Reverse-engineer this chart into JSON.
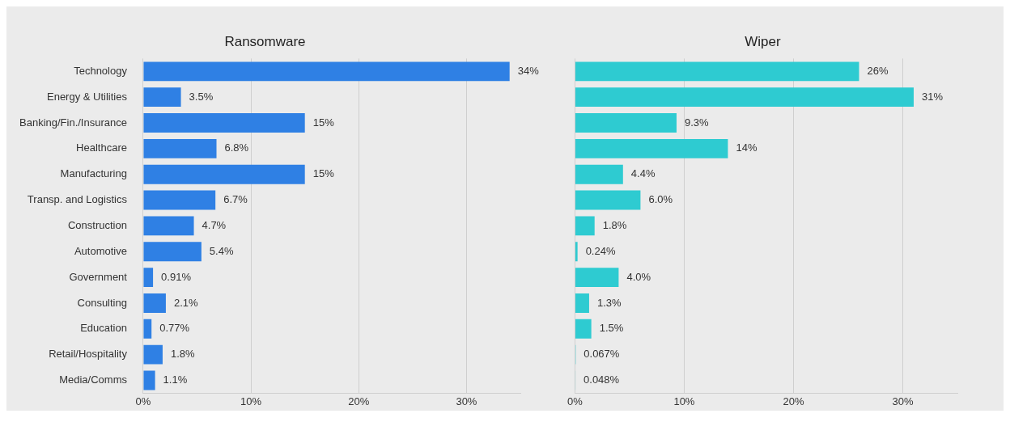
{
  "chart_data": [
    {
      "type": "bar",
      "orientation": "horizontal",
      "title": "Ransomware",
      "categories": [
        "Technology",
        "Energy & Utilities",
        "Banking/Fin./Insurance",
        "Healthcare",
        "Manufacturing",
        "Transp. and Logistics",
        "Construction",
        "Automotive",
        "Government",
        "Consulting",
        "Education",
        "Retail/Hospitality",
        "Media/Comms"
      ],
      "values": [
        34,
        3.5,
        15,
        6.8,
        15,
        6.7,
        4.7,
        5.4,
        0.91,
        2.1,
        0.77,
        1.8,
        1.1
      ],
      "value_labels": [
        "34%",
        "3.5%",
        "15%",
        "6.8%",
        "15%",
        "6.7%",
        "4.7%",
        "5.4%",
        "0.91%",
        "2.1%",
        "0.77%",
        "1.8%",
        "1.1%"
      ],
      "color": "#2f80e4",
      "xlim": [
        0,
        35
      ],
      "xticks": [
        {
          "value": 0,
          "label": "0%"
        },
        {
          "value": 10,
          "label": "10%"
        },
        {
          "value": 20,
          "label": "20%"
        },
        {
          "value": 30,
          "label": "30%"
        }
      ],
      "grid": "x"
    },
    {
      "type": "bar",
      "orientation": "horizontal",
      "title": "Wiper",
      "categories": [
        null,
        null,
        null,
        null,
        null,
        null,
        null,
        null,
        null,
        null,
        null,
        null,
        null
      ],
      "values": [
        26,
        31,
        9.3,
        14,
        4.4,
        6.0,
        1.8,
        0.24,
        4.0,
        1.3,
        1.5,
        0.067,
        0.048
      ],
      "value_labels": [
        "26%",
        "31%",
        "9.3%",
        "14%",
        "4.4%",
        "6.0%",
        "1.8%",
        "0.24%",
        "4.0%",
        "1.3%",
        "1.5%",
        "0.067%",
        "0.048%"
      ],
      "color": "#2ecbd1",
      "xlim": [
        0,
        35
      ],
      "xticks": [
        {
          "value": 0,
          "label": "0%"
        },
        {
          "value": 10,
          "label": "10%"
        },
        {
          "value": 20,
          "label": "20%"
        },
        {
          "value": 30,
          "label": "30%"
        }
      ],
      "grid": "x",
      "tick_labels": "x"
    }
  ]
}
